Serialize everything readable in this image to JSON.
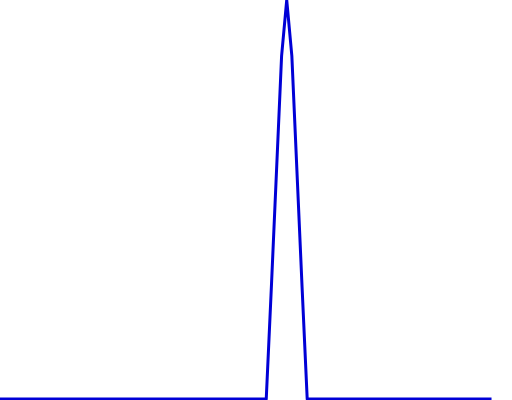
{
  "chart_data": {
    "type": "line",
    "title": "",
    "xlabel": "",
    "ylabel": "",
    "grid": false,
    "xlim": [
      0,
      100
    ],
    "ylim": [
      0,
      1
    ],
    "series": [
      {
        "color": "#0000d6",
        "x": [
          0,
          52,
          53,
          54,
          55,
          56,
          57,
          58,
          59,
          60,
          96
        ],
        "y": [
          0,
          0,
          0.28,
          0.57,
          0.86,
          1.0,
          0.86,
          0.57,
          0.28,
          0,
          0
        ]
      }
    ]
  }
}
